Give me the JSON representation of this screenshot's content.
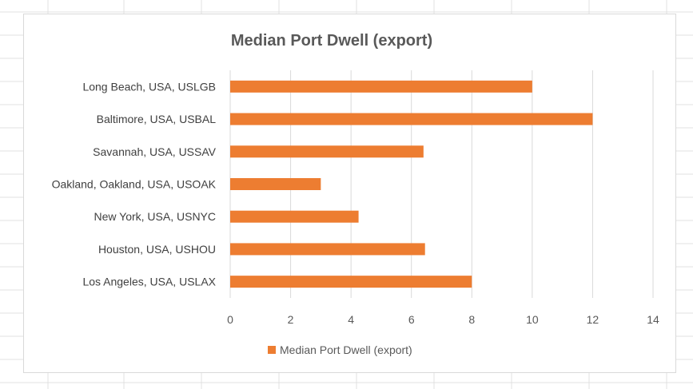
{
  "chart_data": {
    "type": "bar",
    "orientation": "horizontal",
    "title": "Median Port Dwell (export)",
    "categories": [
      "Long Beach, USA, USLGB",
      "Baltimore, USA, USBAL",
      "Savannah, USA, USSAV",
      "Oakland, Oakland, USA, USOAK",
      "New York, USA, USNYC",
      "Houston, USA, USHOU",
      "Los Angeles, USA, USLAX"
    ],
    "series": [
      {
        "name": "Median Port Dwell (export)",
        "values": [
          10,
          12,
          6.4,
          3.0,
          4.25,
          6.45,
          8.0
        ]
      }
    ],
    "xlim": [
      0,
      14
    ],
    "xticks": [
      "0",
      "2",
      "4",
      "6",
      "8",
      "10",
      "12",
      "14"
    ],
    "grid": true,
    "legend": "bottom",
    "colors": {
      "bar": "#ED7D31",
      "gridline": "#d9d9d9"
    }
  }
}
